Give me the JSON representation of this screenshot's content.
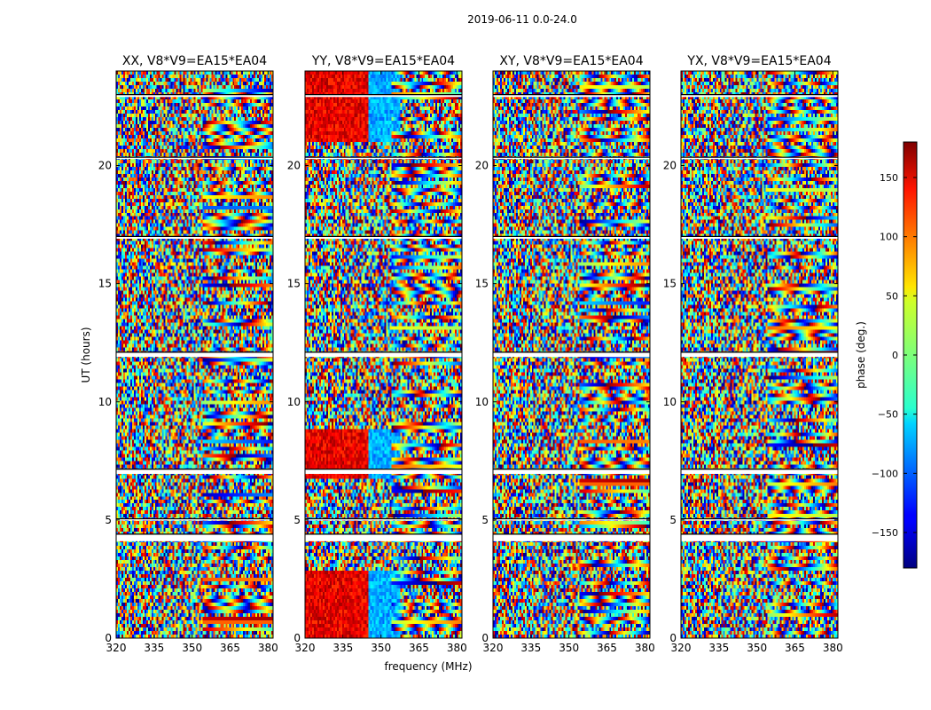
{
  "figure": {
    "suptitle": "2019-06-11 0.0-24.0"
  },
  "chart_data": {
    "type": "heatmap",
    "title": "2019-06-11 0.0-24.0",
    "xlabel": "frequency (MHz)",
    "ylabel": "UT (hours)",
    "xlim": [
      320,
      382
    ],
    "ylim": [
      0,
      24
    ],
    "xticks": [
      320,
      335,
      350,
      365,
      380
    ],
    "yticks": [
      0,
      5,
      10,
      15,
      20
    ],
    "panels": [
      {
        "title": "XX, V8*V9=EA15*EA04",
        "polarization": "XX"
      },
      {
        "title": "YY, V8*V9=EA15*EA04",
        "polarization": "YY"
      },
      {
        "title": "XY, V8*V9=EA15*EA04",
        "polarization": "XY"
      },
      {
        "title": "YX, V8*V9=EA15*EA04",
        "polarization": "YX"
      }
    ],
    "colorbar": {
      "label": "phase (deg.)",
      "colormap": "jet",
      "range": [
        -180,
        180
      ],
      "ticks": [
        150,
        100,
        50,
        0,
        -50,
        -100,
        -150
      ],
      "tick_labels": [
        "150",
        "100",
        "50",
        "0",
        "−50",
        "−100",
        "−150"
      ]
    },
    "flagged_gaps_ut_hours": [
      [
        4.1,
        4.4
      ],
      [
        5.0,
        5.05
      ],
      [
        6.95,
        7.15
      ],
      [
        11.9,
        12.1
      ],
      [
        16.9,
        17.0
      ],
      [
        20.3,
        20.35
      ],
      [
        22.9,
        23.0
      ]
    ]
  }
}
